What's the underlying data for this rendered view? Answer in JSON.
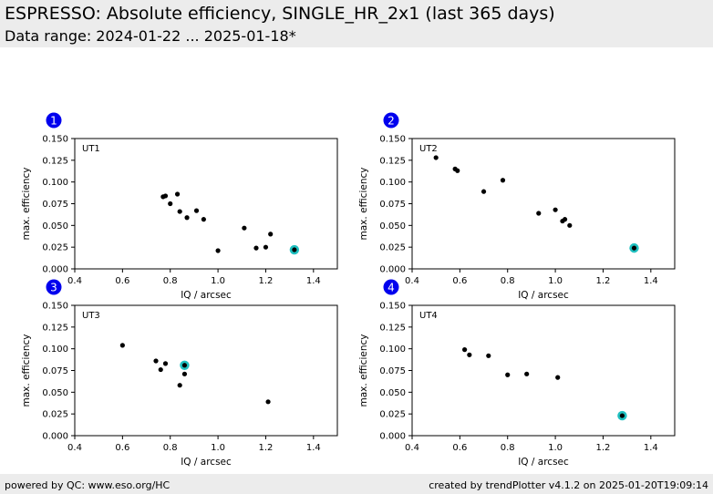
{
  "header": {
    "title": "ESPRESSO: Absolute efficiency, SINGLE_HR_2x1 (last 365 days)",
    "subtitle": "Data range: 2024-01-22 ... 2025-01-18*"
  },
  "footer": {
    "left": "powered by QC: www.eso.org/HC",
    "right": "created by trendPlotter v4.1.2 on 2025-01-20T19:09:14"
  },
  "colors": {
    "point": "#000000",
    "highlight": "#20c0c0",
    "badge": "#0000ee"
  },
  "chart_data": [
    {
      "type": "scatter",
      "badge": "1",
      "label": "UT1",
      "xlabel": "IQ / arcsec",
      "ylabel": "max. efficiency",
      "xlim": [
        0.4,
        1.5
      ],
      "ylim": [
        0.0,
        0.15
      ],
      "xticks": [
        "0.4",
        "0.6",
        "0.8",
        "1.0",
        "1.2",
        "1.4"
      ],
      "yticks": [
        "0.000",
        "0.025",
        "0.050",
        "0.075",
        "0.100",
        "0.125",
        "0.150"
      ],
      "points": [
        [
          0.77,
          0.083
        ],
        [
          0.78,
          0.084
        ],
        [
          0.8,
          0.075
        ],
        [
          0.83,
          0.086
        ],
        [
          0.84,
          0.066
        ],
        [
          0.87,
          0.059
        ],
        [
          0.91,
          0.067
        ],
        [
          0.94,
          0.057
        ],
        [
          1.0,
          0.021
        ],
        [
          1.11,
          0.047
        ],
        [
          1.16,
          0.024
        ],
        [
          1.2,
          0.025
        ],
        [
          1.22,
          0.04
        ]
      ],
      "highlight": [
        1.32,
        0.022
      ]
    },
    {
      "type": "scatter",
      "badge": "2",
      "label": "UT2",
      "xlabel": "IQ / arcsec",
      "ylabel": "max. efficiency",
      "xlim": [
        0.4,
        1.5
      ],
      "ylim": [
        0.0,
        0.15
      ],
      "xticks": [
        "0.4",
        "0.6",
        "0.8",
        "1.0",
        "1.2",
        "1.4"
      ],
      "yticks": [
        "0.000",
        "0.025",
        "0.050",
        "0.075",
        "0.100",
        "0.125",
        "0.150"
      ],
      "points": [
        [
          0.5,
          0.128
        ],
        [
          0.58,
          0.115
        ],
        [
          0.59,
          0.113
        ],
        [
          0.7,
          0.089
        ],
        [
          0.78,
          0.102
        ],
        [
          0.93,
          0.064
        ],
        [
          1.0,
          0.068
        ],
        [
          1.03,
          0.055
        ],
        [
          1.04,
          0.057
        ],
        [
          1.06,
          0.05
        ]
      ],
      "highlight": [
        1.33,
        0.024
      ]
    },
    {
      "type": "scatter",
      "badge": "3",
      "label": "UT3",
      "xlabel": "IQ / arcsec",
      "ylabel": "max. efficiency",
      "xlim": [
        0.4,
        1.5
      ],
      "ylim": [
        0.0,
        0.15
      ],
      "xticks": [
        "0.4",
        "0.6",
        "0.8",
        "1.0",
        "1.2",
        "1.4"
      ],
      "yticks": [
        "0.000",
        "0.025",
        "0.050",
        "0.075",
        "0.100",
        "0.125",
        "0.150"
      ],
      "points": [
        [
          0.6,
          0.104
        ],
        [
          0.74,
          0.086
        ],
        [
          0.76,
          0.076
        ],
        [
          0.78,
          0.083
        ],
        [
          0.84,
          0.058
        ],
        [
          0.86,
          0.071
        ],
        [
          1.21,
          0.039
        ]
      ],
      "highlight": [
        0.86,
        0.081
      ]
    },
    {
      "type": "scatter",
      "badge": "4",
      "label": "UT4",
      "xlabel": "IQ / arcsec",
      "ylabel": "max. efficiency",
      "xlim": [
        0.4,
        1.5
      ],
      "ylim": [
        0.0,
        0.15
      ],
      "xticks": [
        "0.4",
        "0.6",
        "0.8",
        "1.0",
        "1.2",
        "1.4"
      ],
      "yticks": [
        "0.000",
        "0.025",
        "0.050",
        "0.075",
        "0.100",
        "0.125",
        "0.150"
      ],
      "points": [
        [
          0.62,
          0.099
        ],
        [
          0.64,
          0.093
        ],
        [
          0.72,
          0.092
        ],
        [
          0.8,
          0.07
        ],
        [
          0.88,
          0.071
        ],
        [
          1.01,
          0.067
        ]
      ],
      "highlight": [
        1.28,
        0.023
      ]
    }
  ]
}
